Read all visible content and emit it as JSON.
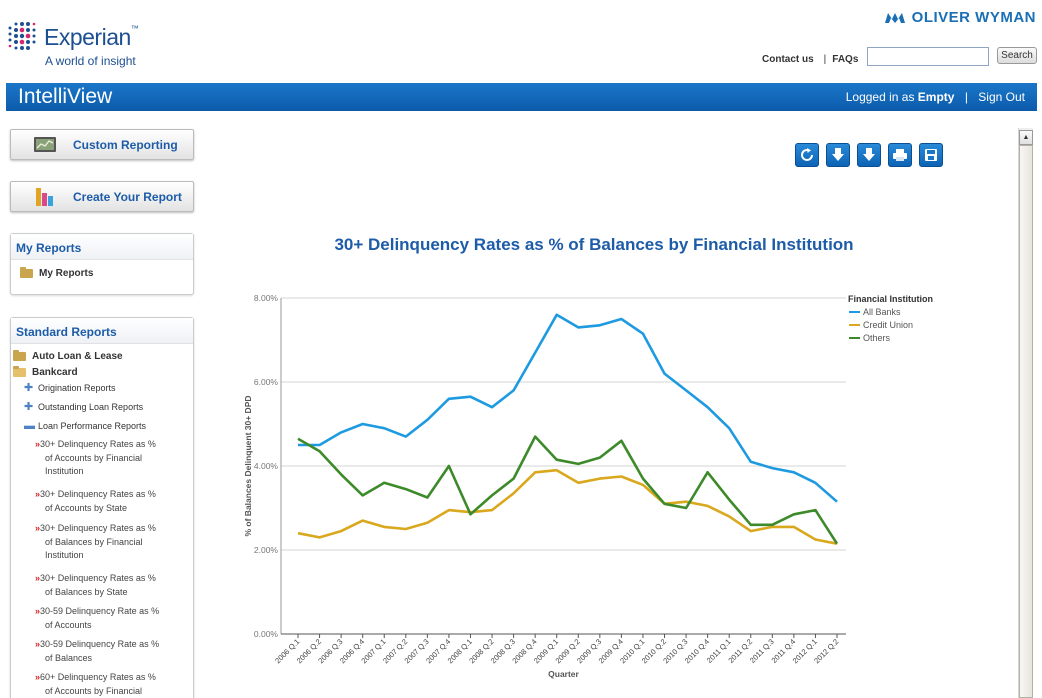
{
  "brand": {
    "name": "Experian",
    "trademark": "™",
    "tagline": "A world of insight",
    "partner": "OLIVER WYMAN"
  },
  "header": {
    "links": [
      "Contact us",
      "FAQs"
    ],
    "search_placeholder": "",
    "search_button": "Search"
  },
  "banner": {
    "app_title": "IntelliView",
    "logged_in_prefix": "Logged in as",
    "user": "Empty",
    "sign_out": "Sign Out"
  },
  "sidebar": {
    "custom_reporting": "Custom Reporting",
    "create_report": "Create Your Report",
    "my_reports": {
      "title": "My Reports",
      "folder": "My Reports"
    },
    "standard_reports": {
      "title": "Standard Reports",
      "categories": [
        "Auto Loan & Lease",
        "Bankcard"
      ],
      "bankcard_sections": [
        "Origination Reports",
        "Outstanding Loan Reports",
        "Loan Performance Reports"
      ],
      "reports": [
        {
          "line1": "30+ Delinquency Rates as %",
          "line2": "of Accounts by Financial",
          "line3": "Institution"
        },
        {
          "line1": "30+ Delinquency Rates as %",
          "line2": "of Accounts by State",
          "line3": ""
        },
        {
          "line1": "30+ Delinquency Rates as %",
          "line2": "of Balances by Financial",
          "line3": "Institution"
        },
        {
          "line1": "30+ Delinquency Rates as %",
          "line2": "of Balances by State",
          "line3": ""
        },
        {
          "line1": "30-59 Delinquency Rate as %",
          "line2": "of Accounts",
          "line3": ""
        },
        {
          "line1": "30-59 Delinquency Rate as %",
          "line2": "of Balances",
          "line3": ""
        },
        {
          "line1": "60+ Delinquency Rates as %",
          "line2": "of Accounts by Financial",
          "line3": ""
        }
      ]
    }
  },
  "toolbar": {
    "icons": [
      "refresh-icon",
      "download-pdf-icon",
      "download-xls-icon",
      "print-icon",
      "save-icon"
    ]
  },
  "chart_data": {
    "type": "line",
    "title": "30+ Delinquency Rates as % of Balances by Financial Institution",
    "xlabel": "Quarter",
    "ylabel": "% of Balances Delinquent 30+ DPD",
    "ylim": [
      0,
      8
    ],
    "yticks": [
      "0.00%",
      "2.00%",
      "4.00%",
      "6.00%",
      "8.00%"
    ],
    "grid": true,
    "legend": {
      "title": "Financial Institution",
      "position": "right"
    },
    "categories": [
      "2006 Q.1",
      "2006 Q.2",
      "2006 Q.3",
      "2006 Q.4",
      "2007 Q.1",
      "2007 Q.2",
      "2007 Q.3",
      "2007 Q.4",
      "2008 Q.1",
      "2008 Q.2",
      "2008 Q.3",
      "2008 Q.4",
      "2009 Q.1",
      "2009 Q.2",
      "2009 Q.3",
      "2009 Q.4",
      "2010 Q.1",
      "2010 Q.2",
      "2010 Q.3",
      "2010 Q.4",
      "2011 Q.1",
      "2011 Q.2",
      "2011 Q.3",
      "2011 Q.4",
      "2012 Q.1",
      "2012 Q.2"
    ],
    "series": [
      {
        "name": "All Banks",
        "color": "#1e9ae0",
        "values": [
          4.5,
          4.5,
          4.8,
          5.0,
          4.9,
          4.7,
          5.1,
          5.6,
          5.65,
          5.4,
          5.8,
          6.7,
          7.6,
          7.3,
          7.35,
          7.5,
          7.15,
          6.2,
          5.8,
          5.4,
          4.9,
          4.1,
          3.95,
          3.85,
          3.6,
          3.15
        ]
      },
      {
        "name": "Credit Union",
        "color": "#d9a81e",
        "values": [
          2.4,
          2.3,
          2.45,
          2.7,
          2.55,
          2.5,
          2.65,
          2.95,
          2.9,
          2.95,
          3.35,
          3.85,
          3.9,
          3.6,
          3.7,
          3.75,
          3.55,
          3.1,
          3.15,
          3.05,
          2.8,
          2.45,
          2.55,
          2.55,
          2.25,
          2.15
        ]
      },
      {
        "name": "Others",
        "color": "#3d8a2a",
        "values": [
          4.65,
          4.35,
          3.8,
          3.3,
          3.6,
          3.45,
          3.25,
          4.0,
          2.85,
          3.3,
          3.7,
          4.7,
          4.15,
          4.05,
          4.2,
          4.6,
          3.7,
          3.1,
          3.0,
          3.85,
          3.2,
          2.6,
          2.6,
          2.85,
          2.95,
          2.15
        ]
      }
    ]
  }
}
